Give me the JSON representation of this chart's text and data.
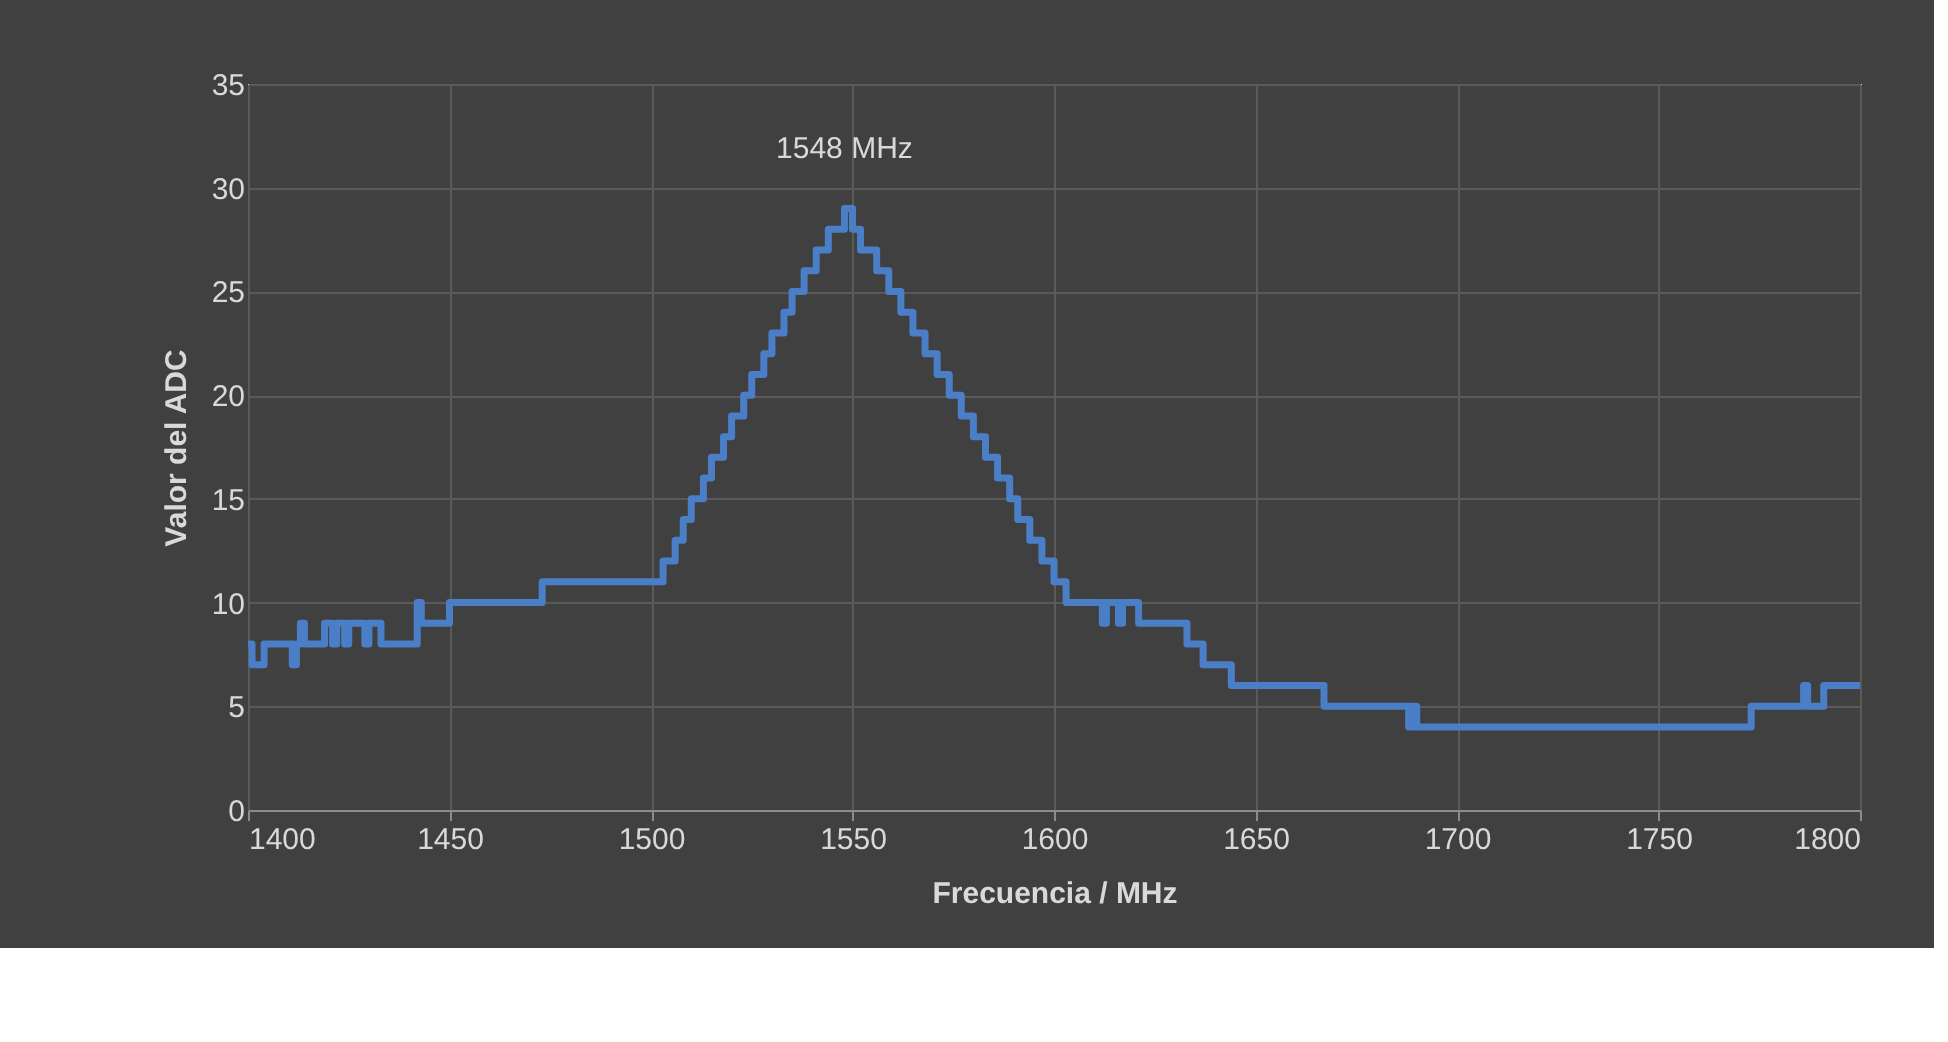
{
  "chart_data": {
    "type": "step",
    "xlabel": "Frecuencia / MHz",
    "ylabel": "Valor del ADC",
    "x": [
      1400,
      1401,
      1404,
      1411,
      1412,
      1413,
      1414,
      1419,
      1421,
      1422,
      1424,
      1425,
      1429,
      1430,
      1433,
      1442,
      1443,
      1450,
      1473,
      1503,
      1506,
      1508,
      1510,
      1513,
      1515,
      1518,
      1520,
      1523,
      1525,
      1528,
      1530,
      1533,
      1535,
      1538,
      1541,
      1544,
      1548,
      1550,
      1552,
      1556,
      1559,
      1562,
      1565,
      1568,
      1571,
      1574,
      1577,
      1580,
      1583,
      1586,
      1589,
      1591,
      1594,
      1597,
      1600,
      1603,
      1612,
      1613,
      1616,
      1617,
      1621,
      1633,
      1637,
      1644,
      1667,
      1688,
      1689,
      1690,
      1773,
      1786,
      1787,
      1791,
      1800
    ],
    "series": [
      {
        "color": "#4a7fc8",
        "values": [
          8,
          7,
          8,
          7,
          8,
          9,
          8,
          9,
          8,
          9,
          8,
          9,
          8,
          9,
          8,
          10,
          9,
          10,
          11,
          12,
          13,
          14,
          15,
          16,
          17,
          18,
          19,
          20,
          21,
          22,
          23,
          24,
          25,
          26,
          27,
          28,
          29,
          28,
          27,
          26,
          25,
          24,
          23,
          22,
          21,
          20,
          19,
          18,
          17,
          16,
          15,
          14,
          13,
          12,
          11,
          10,
          9,
          10,
          9,
          10,
          9,
          8,
          7,
          6,
          5,
          4,
          5,
          4,
          5,
          6,
          5,
          6,
          6
        ]
      }
    ],
    "annotations": [
      {
        "text": "1548 MHz",
        "x": 1548,
        "y": 29
      }
    ],
    "xlim": [
      1400,
      1800
    ],
    "xticks": [
      1400,
      1450,
      1500,
      1550,
      1600,
      1650,
      1700,
      1750,
      1800
    ],
    "ylim": [
      0,
      35
    ],
    "yticks": [
      0,
      5,
      10,
      15,
      20,
      25,
      30,
      35
    ],
    "grid": true
  }
}
